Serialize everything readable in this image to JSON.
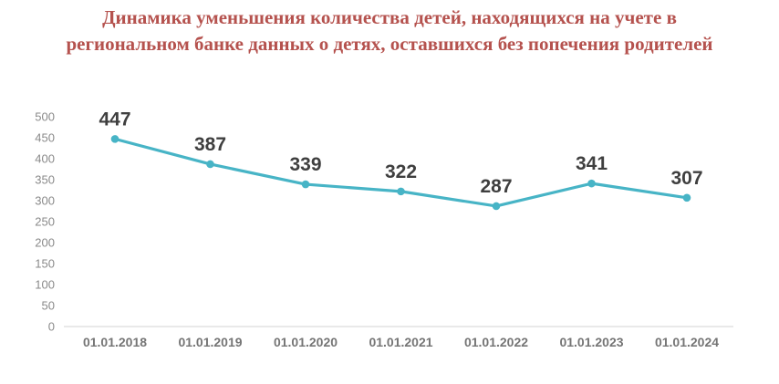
{
  "title": {
    "line1": "Динамика уменьшения количества детей, находящихся на учете в",
    "line2": "региональном банке данных о детях, оставшихся без попечения родителей",
    "color": "#b5524e"
  },
  "chart_data": {
    "type": "line",
    "title": "Динамика уменьшения количества детей, находящихся на учете в региональном банке данных о детях, оставшихся без попечения родителей",
    "categories": [
      "01.01.2018",
      "01.01.2019",
      "01.01.2020",
      "01.01.2021",
      "01.01.2022",
      "01.01.2023",
      "01.01.2024"
    ],
    "values": [
      447,
      387,
      339,
      322,
      287,
      341,
      307
    ],
    "xlabel": "",
    "ylabel": "",
    "ylim": [
      0,
      500
    ],
    "ytick_step": 50,
    "grid": false,
    "legend": "none",
    "line_color": "#47b4c6",
    "marker": "circle",
    "data_label_color": "#3f3f3f",
    "axis_line_color": "#e2e2e2",
    "tick_label_color": "#8a8a8a"
  }
}
